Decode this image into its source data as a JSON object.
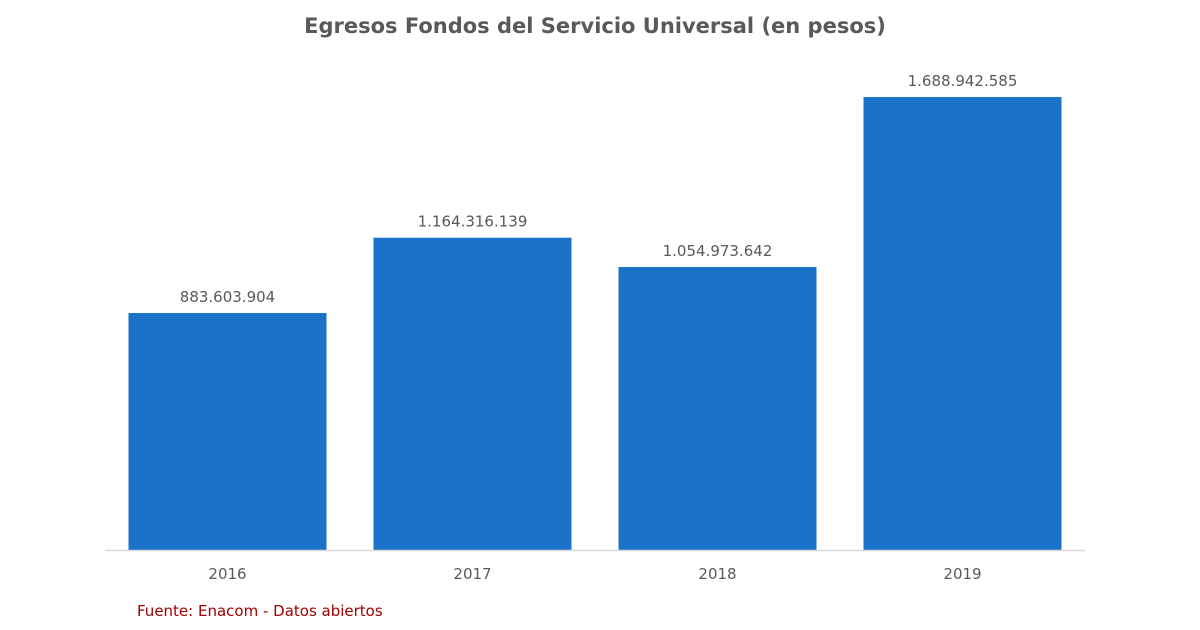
{
  "chart_data": {
    "type": "bar",
    "title": "Egresos Fondos del Servicio Universal (en pesos)",
    "categories": [
      "2016",
      "2017",
      "2018",
      "2019"
    ],
    "values": [
      883603904,
      1164316139,
      1054973642,
      1688942585
    ],
    "value_labels": [
      "883.603.904",
      "1.164.316.139",
      "1.054.973.642",
      "1.688.942.585"
    ],
    "xlabel": "",
    "ylabel": "",
    "ylim": [
      0,
      1688942585
    ],
    "grid": false,
    "legend": "none",
    "colors": {
      "bar": "#1a73c8",
      "axis": "#d9d9d9",
      "text": "#595959"
    }
  },
  "source": "Fuente: Enacom - Datos abiertos"
}
